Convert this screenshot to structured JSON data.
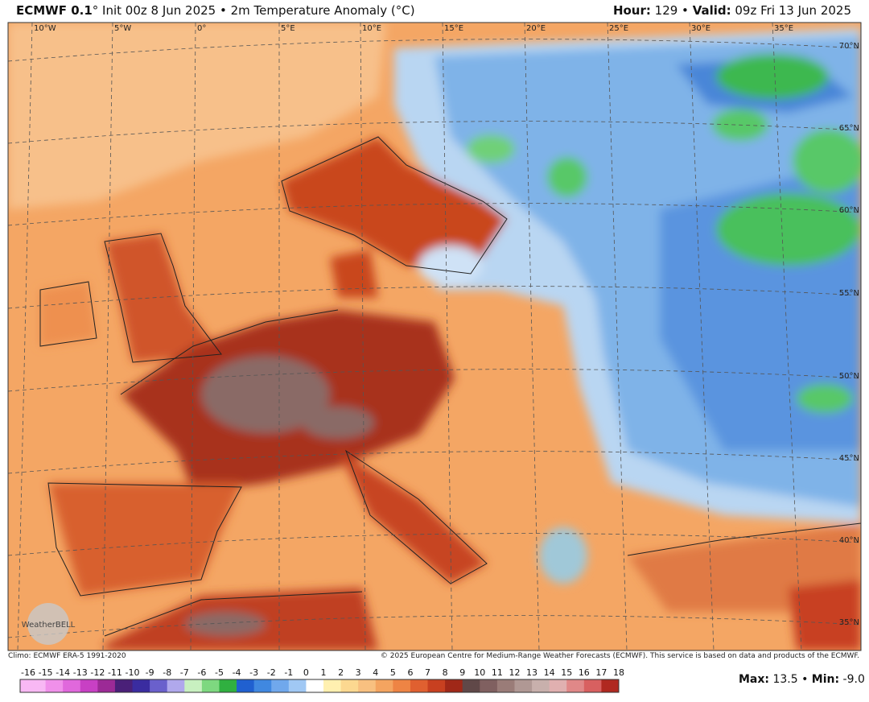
{
  "header": {
    "model": "ECMWF 0.1",
    "description": "° Init 00z 8 Jun 2025 • 2m Temperature Anomaly (°C)",
    "hour_label": "Hour:",
    "hour": " 129 • ",
    "valid_label": "Valid:",
    "valid": " 09z Fri 13 Jun 2025"
  },
  "map": {
    "longitudes": [
      "10°W",
      "5°W",
      "0°",
      "5°E",
      "10°E",
      "15°E",
      "20°E",
      "25°E",
      "30°E",
      "35°E"
    ],
    "latitudes": [
      "70°N",
      "65°N",
      "60°N",
      "55°N",
      "50°N",
      "45°N",
      "40°N",
      "35°N"
    ],
    "logo": "WeatherBELL"
  },
  "footer": {
    "climo": "Climo: ECMWF ERA-5 1991-2020",
    "copyright": "© 2025 European Centre for Medium-Range Weather Forecasts (ECMWF). This service is based on data and products of the ECMWF."
  },
  "colorbar": {
    "labels": [
      -16,
      -15,
      -14,
      -13,
      -12,
      -11,
      -10,
      -9,
      -8,
      -7,
      -6,
      -5,
      -4,
      -3,
      -2,
      -1,
      0,
      1,
      2,
      3,
      4,
      5,
      6,
      7,
      8,
      9,
      10,
      11,
      12,
      13,
      14,
      15,
      16,
      17,
      18
    ],
    "colors": [
      "#f8b8f4",
      "#f090ea",
      "#e068dc",
      "#c840c4",
      "#9c2a96",
      "#4a2078",
      "#3a2ca0",
      "#6a60cc",
      "#b0a8ec",
      "#c8f0c0",
      "#7ed880",
      "#30b040",
      "#2060d0",
      "#4088e0",
      "#70a8ec",
      "#a0c8f4",
      "#ffffff",
      "#fff0b0",
      "#fcd890",
      "#f8c080",
      "#f4a460",
      "#ee8444",
      "#e06030",
      "#c84020",
      "#a02818",
      "#604848",
      "#806060",
      "#9a7c78",
      "#b09894",
      "#c8b0ac",
      "#e0b0b0",
      "#e08888",
      "#d86060",
      "#b02820"
    ]
  },
  "stats": {
    "max_label": "Max:",
    "max": " 13.5 • ",
    "min_label": "Min:",
    "min": " -9.0"
  }
}
